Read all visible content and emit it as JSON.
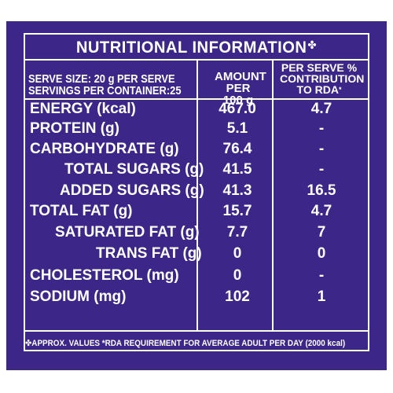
{
  "title": "NUTRITIONAL INFORMATION",
  "title_marker": "✤",
  "serve_size": "SERVE SIZE: 20 g PER SERVE",
  "servings": "SERVINGS PER CONTAINER:25",
  "col_amount_line1": "AMOUNT",
  "col_amount_line2": "PER 100 g",
  "col_rda_line1": "PER SERVE %",
  "col_rda_line2": "CONTRIBUTION",
  "col_rda_line3": "TO RDA",
  "col_rda_marker": "*",
  "rows": [
    {
      "label": "ENERGY (kcal)",
      "amount": "467.0",
      "rda": "4.7"
    },
    {
      "label": "PROTEIN (g)",
      "amount": "5.1",
      "rda": "-"
    },
    {
      "label": "CARBOHYDRATE (g)",
      "amount": "76.4",
      "rda": "-"
    },
    {
      "label": "TOTAL SUGARS (g)",
      "amount": "41.5",
      "rda": "-"
    },
    {
      "label": "ADDED SUGARS (g)",
      "amount": "41.3",
      "rda": "16.5"
    },
    {
      "label": "TOTAL FAT (g)",
      "amount": "15.7",
      "rda": "4.7"
    },
    {
      "label": "SATURATED FAT (g)",
      "amount": "7.7",
      "rda": "7"
    },
    {
      "label": "TRANS FAT (g)",
      "amount": "0",
      "rda": "0"
    },
    {
      "label": "CHOLESTEROL (mg)",
      "amount": "0",
      "rda": "-"
    },
    {
      "label": "SODIUM (mg)",
      "amount": "102",
      "rda": "1"
    }
  ],
  "footer": "✤APPROX. VALUES *RDA REQUIREMENT FOR AVERAGE ADULT PER DAY (2000 kcal)",
  "colors": {
    "background": "#3c2687",
    "text": "#ffffff"
  }
}
